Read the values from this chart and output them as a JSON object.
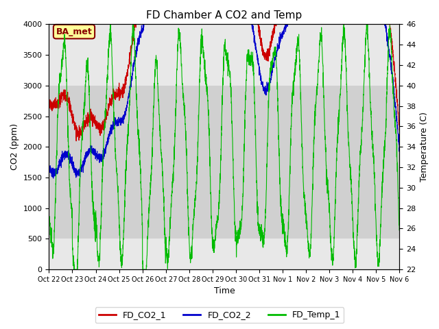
{
  "title": "FD Chamber A CO2 and Temp",
  "xlabel": "Time",
  "ylabel_left": "CO2 (ppm)",
  "ylabel_right": "Temperature (C)",
  "co2_ylim": [
    0,
    4000
  ],
  "temp_ylim": [
    22,
    46
  ],
  "co2_yticks": [
    0,
    500,
    1000,
    1500,
    2000,
    2500,
    3000,
    3500,
    4000
  ],
  "temp_yticks": [
    22,
    24,
    26,
    28,
    30,
    32,
    34,
    36,
    38,
    40,
    42,
    44,
    46
  ],
  "bg_band_co2": [
    500,
    3000
  ],
  "annotation_label": "BA_met",
  "annotation_bg": "#ffff99",
  "annotation_border": "#880000",
  "line_colors": {
    "FD_CO2_1": "#cc0000",
    "FD_CO2_2": "#0000cc",
    "FD_Temp_1": "#00bb00"
  },
  "legend_labels": [
    "FD_CO2_1",
    "FD_CO2_2",
    "FD_Temp_1"
  ],
  "xtick_labels": [
    "Oct 22",
    "Oct 23",
    "Oct 24",
    "Oct 25",
    "Oct 26",
    "Oct 27",
    "Oct 28",
    "Oct 29",
    "Oct 30",
    "Oct 31",
    "Nov 1",
    "Nov 2",
    "Nov 3",
    "Nov 4",
    "Nov 5",
    "Nov 6"
  ],
  "background_color": "#e8e8e8",
  "plot_bg": "#ffffff",
  "band_color": "#d0d0d0"
}
